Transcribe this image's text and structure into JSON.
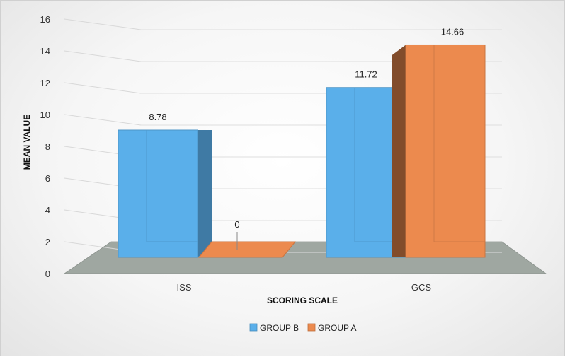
{
  "chart_data": {
    "type": "bar",
    "categories": [
      "ISS",
      "GCS"
    ],
    "series": [
      {
        "name": "GROUP B",
        "values": [
          8.78,
          11.72
        ],
        "color": "#5aafea"
      },
      {
        "name": "GROUP A",
        "values": [
          0,
          14.66
        ],
        "color": "#ec8a4e"
      }
    ],
    "value_labels": {
      "GROUP B": [
        "8.78",
        "11.72"
      ],
      "GROUP A": [
        "0",
        "14.66"
      ]
    },
    "title": "",
    "xlabel": "SCORING SCALE",
    "ylabel": "MEAN VALUE",
    "ylim": [
      0,
      16
    ],
    "yticks": [
      0,
      2,
      4,
      6,
      8,
      10,
      12,
      14,
      16
    ],
    "grid": true,
    "legend_position": "bottom",
    "style": "3d-clustered-column"
  }
}
